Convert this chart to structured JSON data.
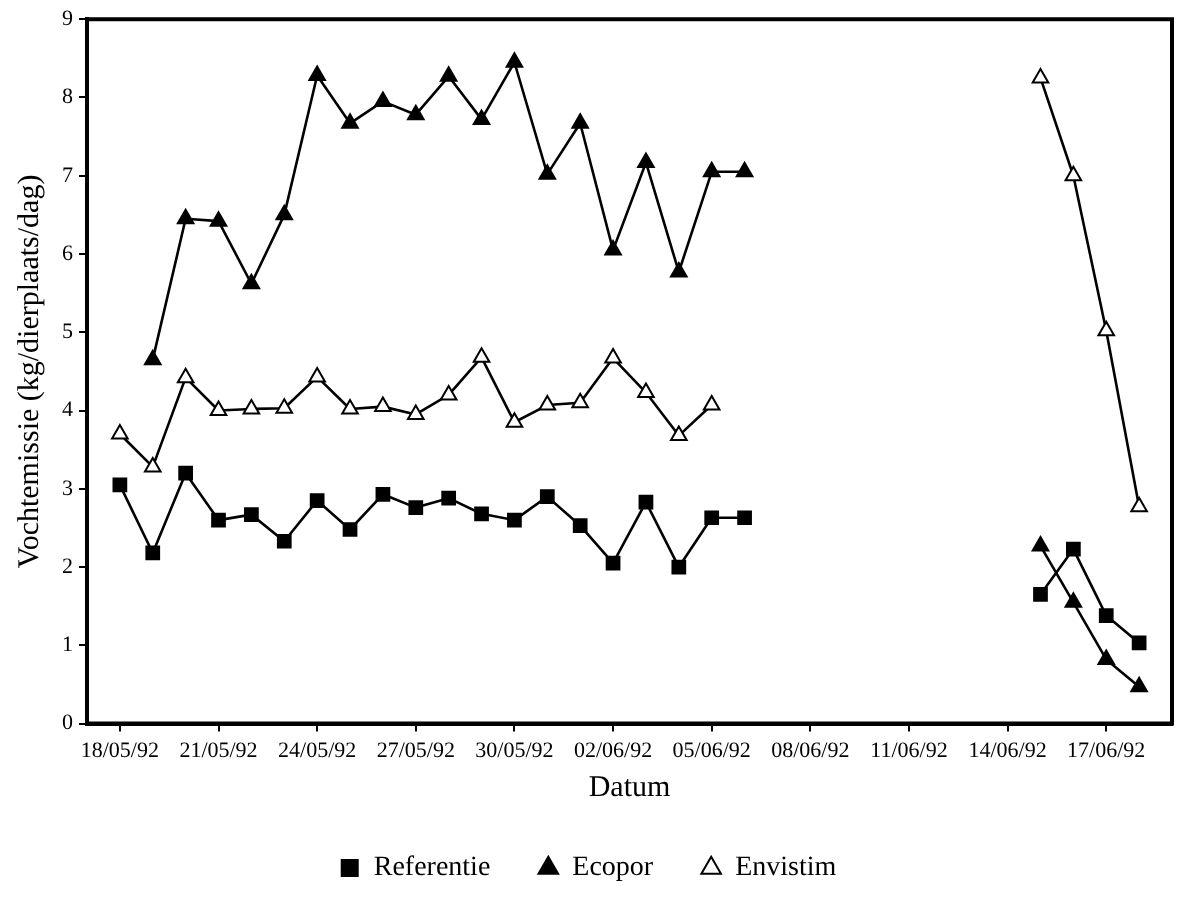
{
  "chart_data": {
    "type": "line",
    "xlabel": "Datum",
    "ylabel": "Vochtemissie (kg/dierplaats/dag)",
    "x": [
      "1992-05-18",
      "1992-05-19",
      "1992-05-20",
      "1992-05-21",
      "1992-05-22",
      "1992-05-23",
      "1992-05-24",
      "1992-05-25",
      "1992-05-26",
      "1992-05-27",
      "1992-05-28",
      "1992-05-29",
      "1992-05-30",
      "1992-05-31",
      "1992-06-01",
      "1992-06-02",
      "1992-06-03",
      "1992-06-04",
      "1992-06-05",
      "1992-06-06",
      "1992-06-07",
      "1992-06-08",
      "1992-06-09",
      "1992-06-10",
      "1992-06-11",
      "1992-06-12",
      "1992-06-13",
      "1992-06-14",
      "1992-06-15",
      "1992-06-16",
      "1992-06-17",
      "1992-06-18"
    ],
    "series": [
      {
        "name": "Referentie",
        "color": "#000000",
        "marker": "square",
        "values": [
          3.05,
          2.18,
          3.2,
          2.6,
          2.67,
          2.33,
          2.85,
          2.48,
          2.93,
          2.76,
          2.88,
          2.68,
          2.6,
          2.9,
          2.53,
          2.05,
          2.83,
          2.0,
          2.63,
          2.63,
          null,
          null,
          null,
          null,
          null,
          null,
          null,
          null,
          1.65,
          2.23,
          1.38,
          1.03
        ]
      },
      {
        "name": "Ecopor",
        "color": "#000000",
        "marker": "triangle",
        "values": [
          null,
          4.65,
          6.45,
          6.42,
          5.62,
          6.5,
          8.28,
          7.67,
          7.95,
          7.78,
          8.27,
          7.72,
          8.45,
          7.02,
          7.67,
          6.05,
          7.17,
          5.77,
          7.05,
          7.05,
          null,
          null,
          null,
          null,
          null,
          null,
          null,
          null,
          2.27,
          1.55,
          0.82,
          0.47
        ]
      },
      {
        "name": "Envistim",
        "color": "#ffffff",
        "marker": "triangle",
        "values": [
          3.7,
          3.28,
          4.42,
          4.0,
          4.02,
          4.03,
          4.43,
          4.02,
          4.05,
          3.95,
          4.2,
          4.68,
          3.85,
          4.07,
          4.1,
          4.67,
          4.23,
          3.68,
          4.07,
          null,
          null,
          null,
          null,
          null,
          null,
          null,
          null,
          null,
          8.25,
          7.0,
          5.02,
          2.77
        ]
      }
    ],
    "xlim": [
      "1992-05-17",
      "1992-06-19"
    ],
    "xticks": [
      {
        "value": "1992-05-18",
        "label": "18/05/92"
      },
      {
        "value": "1992-05-21",
        "label": "21/05/92"
      },
      {
        "value": "1992-05-24",
        "label": "24/05/92"
      },
      {
        "value": "1992-05-27",
        "label": "27/05/92"
      },
      {
        "value": "1992-05-30",
        "label": "30/05/92"
      },
      {
        "value": "1992-06-02",
        "label": "02/06/92"
      },
      {
        "value": "1992-06-05",
        "label": "05/06/92"
      },
      {
        "value": "1992-06-08",
        "label": "08/06/92"
      },
      {
        "value": "1992-06-11",
        "label": "11/06/92"
      },
      {
        "value": "1992-06-14",
        "label": "14/06/92"
      },
      {
        "value": "1992-06-17",
        "label": "17/06/92"
      }
    ],
    "ylim": [
      0,
      9
    ],
    "yticks": [
      0,
      1,
      2,
      3,
      4,
      5,
      6,
      7,
      8,
      9
    ],
    "grid": false,
    "legend": "bottom",
    "line_style": "solid"
  }
}
